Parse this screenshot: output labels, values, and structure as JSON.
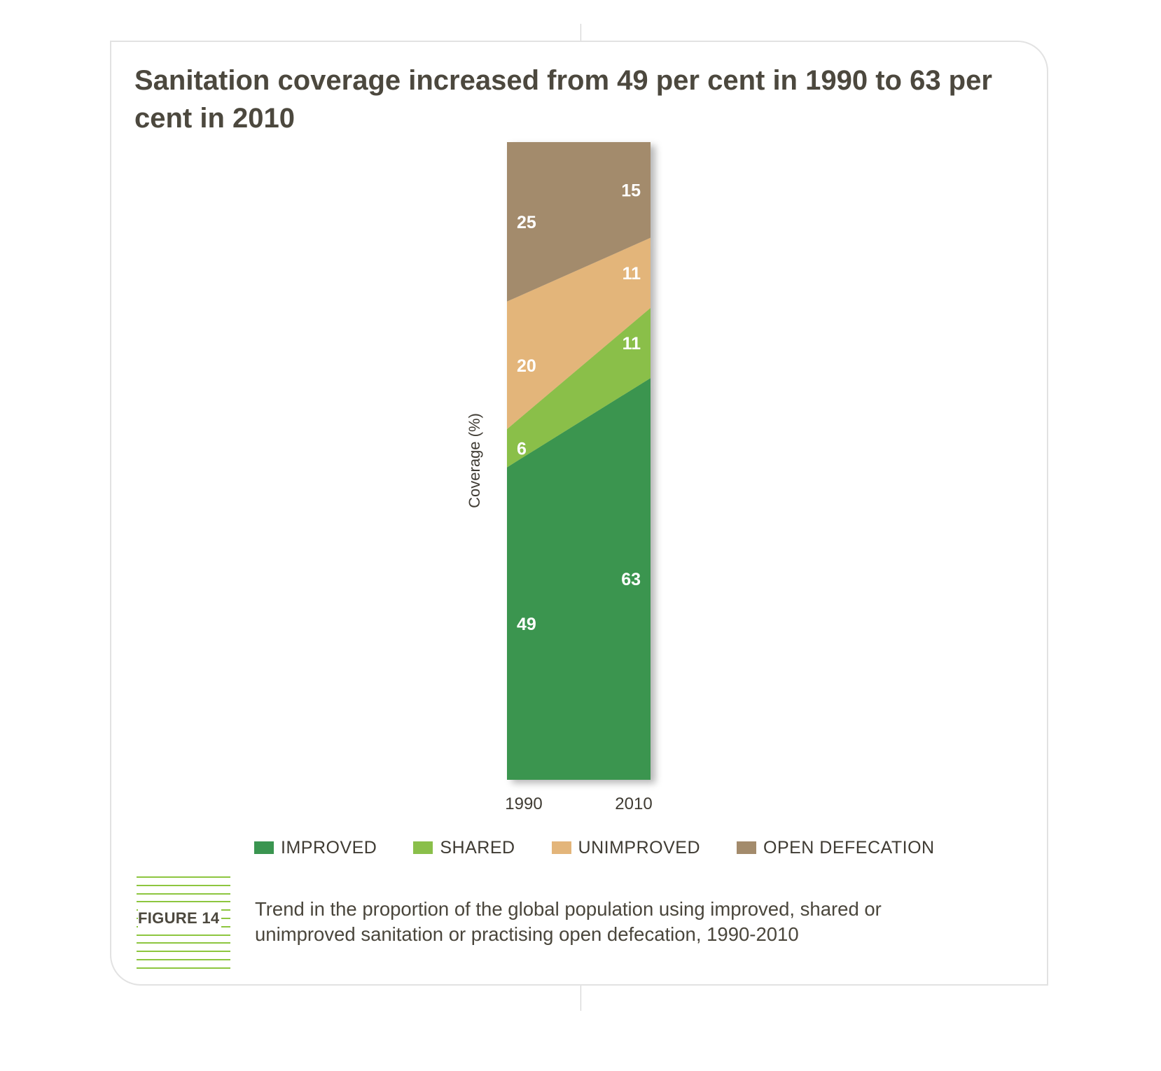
{
  "figure": {
    "title": "Sanitation coverage increased from 49 per cent in 1990 to 63 per cent in 2010",
    "label": "FIGURE 14",
    "caption": "Trend in the proportion of the global population using improved, shared or unimproved sanitation or practising open defecation, 1990-2010"
  },
  "legend": [
    {
      "label": "IMPROVED",
      "color": "#3a9550"
    },
    {
      "label": "SHARED",
      "color": "#8abf4a"
    },
    {
      "label": "UNIMPROVED",
      "color": "#e3b57a"
    },
    {
      "label": "OPEN DEFECATION",
      "color": "#a38b6c"
    }
  ],
  "chart_data": {
    "type": "area",
    "stacked": true,
    "x": [
      "1990",
      "2010"
    ],
    "ylabel": "Coverage (%)",
    "ylim": [
      0,
      100
    ],
    "grid": false,
    "legend_position": "bottom",
    "series": [
      {
        "name": "IMPROVED",
        "values": [
          49,
          63
        ],
        "color": "#3a9550"
      },
      {
        "name": "SHARED",
        "values": [
          6,
          11
        ],
        "color": "#8abf4a"
      },
      {
        "name": "UNIMPROVED",
        "values": [
          20,
          11
        ],
        "color": "#e3b57a"
      },
      {
        "name": "OPEN DEFECATION",
        "values": [
          25,
          15
        ],
        "color": "#a38b6c"
      }
    ]
  }
}
